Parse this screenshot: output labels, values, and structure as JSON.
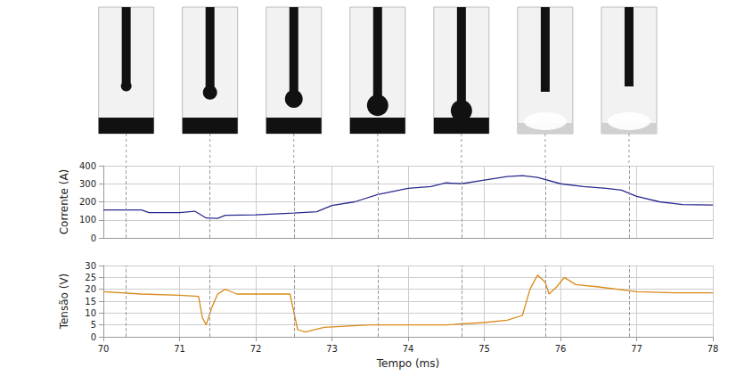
{
  "chart_data": [
    {
      "type": "line",
      "y_label": "Corrente (A)",
      "x": [
        70,
        70.5,
        70.6,
        71.0,
        71.2,
        71.35,
        71.5,
        71.6,
        72.0,
        72.5,
        72.8,
        73.0,
        73.3,
        73.6,
        74.0,
        74.3,
        74.5,
        74.7,
        75.0,
        75.3,
        75.5,
        75.7,
        76.0,
        76.3,
        76.6,
        76.8,
        77.0,
        77.3,
        77.6,
        78.0
      ],
      "values": [
        155,
        155,
        140,
        140,
        148,
        110,
        108,
        125,
        128,
        138,
        145,
        180,
        200,
        240,
        275,
        285,
        305,
        300,
        320,
        340,
        345,
        335,
        300,
        285,
        275,
        265,
        230,
        200,
        185,
        182
      ],
      "color": "#2b2b8f",
      "xlim": [
        70,
        78
      ],
      "xticks": [
        70,
        71,
        72,
        73,
        74,
        75,
        76,
        77,
        78
      ],
      "ylim": [
        0,
        400
      ],
      "yticks": [
        0,
        100,
        200,
        300,
        400
      ],
      "grid": true,
      "tick_labels": "y"
    },
    {
      "type": "line",
      "y_label": "Tensão (V)",
      "x_label": "Tempo (ms)",
      "x": [
        70,
        70.5,
        71.0,
        71.25,
        71.3,
        71.35,
        71.42,
        71.5,
        71.6,
        71.75,
        72.0,
        72.45,
        72.55,
        72.65,
        72.9,
        73.5,
        74.0,
        74.5,
        75.0,
        75.3,
        75.5,
        75.6,
        75.7,
        75.8,
        75.85,
        75.95,
        76.05,
        76.2,
        76.5,
        77.0,
        77.5,
        78.0
      ],
      "values": [
        19,
        18,
        17.5,
        17,
        8,
        5,
        12,
        18,
        20,
        18,
        18,
        18,
        3,
        2,
        4,
        5,
        5,
        5,
        6,
        7,
        9,
        20,
        26,
        23,
        18,
        21,
        25,
        22,
        21,
        19,
        18.5,
        18.5
      ],
      "color": "#d98a1a",
      "xlim": [
        70,
        78
      ],
      "xticks": [
        70,
        71,
        72,
        73,
        74,
        75,
        76,
        77,
        78
      ],
      "ylim": [
        0,
        30
      ],
      "yticks": [
        0,
        5,
        10,
        15,
        20,
        25,
        30
      ],
      "grid": true
    }
  ],
  "frame_times": [
    70.3,
    71.4,
    72.5,
    73.6,
    74.7,
    75.8,
    76.9
  ]
}
